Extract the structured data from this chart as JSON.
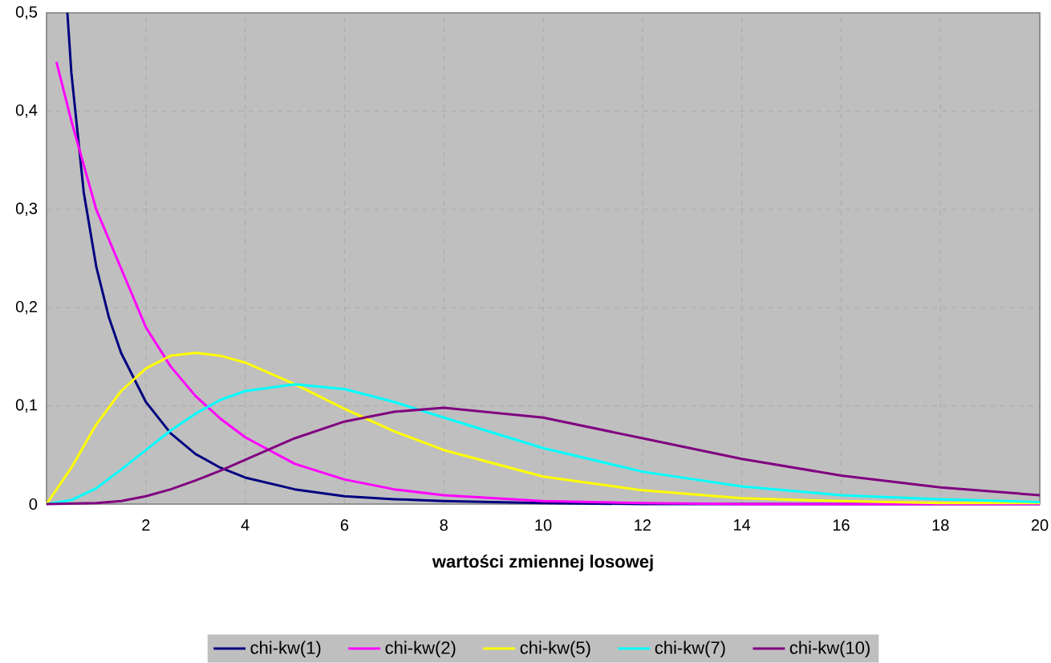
{
  "chart_data": {
    "type": "line",
    "xlabel": "wartości zmiennej losowej",
    "xlim": [
      0,
      20
    ],
    "ylim": [
      0,
      0.5
    ],
    "xticks": [
      {
        "value": 0,
        "label": null
      },
      2,
      4,
      6,
      8,
      10,
      12,
      14,
      16,
      18,
      20
    ],
    "yticks": [
      {
        "value": 0,
        "label": "0"
      },
      {
        "value": 0.1,
        "label": "0,1"
      },
      {
        "value": 0.2,
        "label": "0,2"
      },
      {
        "value": 0.3,
        "label": "0,3"
      },
      {
        "value": 0.4,
        "label": "0,4"
      },
      {
        "value": 0.5,
        "label": "0,5"
      }
    ],
    "grid": true,
    "legend": "bottom",
    "marker": "none",
    "line_style": "solid",
    "series": [
      {
        "name": "chi-kw(1)",
        "color": "#000080",
        "x": [
          0.42,
          0.5,
          0.75,
          1,
          1.25,
          1.5,
          2,
          2.5,
          3,
          3.5,
          4,
          5,
          6,
          7,
          8,
          10,
          12,
          14,
          16,
          18,
          20
        ],
        "values": [
          0.5,
          0.439,
          0.317,
          0.242,
          0.191,
          0.154,
          0.104,
          0.072,
          0.051,
          0.037,
          0.027,
          0.015,
          0.008,
          0.005,
          0.003,
          0.001,
          0,
          0,
          null,
          null,
          0
        ]
      },
      {
        "name": "chi-kw(2)",
        "color": "#ff00ff",
        "x": [
          0.2,
          0.5,
          1,
          1.5,
          2,
          2.5,
          3,
          3.5,
          4,
          5,
          6,
          7,
          8,
          10,
          12,
          14,
          16,
          18,
          20
        ],
        "values": [
          0.45,
          0.39,
          0.3,
          0.24,
          0.18,
          0.14,
          0.11,
          0.087,
          0.068,
          0.041,
          0.025,
          0.015,
          0.009,
          0.003,
          0.001,
          0,
          0,
          null,
          0
        ]
      },
      {
        "name": "chi-kw(5)",
        "color": "#ffff00",
        "x": [
          0,
          0.5,
          1,
          1.5,
          2,
          2.5,
          3,
          3.5,
          4,
          5,
          6,
          7,
          8,
          10,
          12,
          14,
          16,
          18,
          20
        ],
        "values": [
          0,
          0.037,
          0.081,
          0.115,
          0.138,
          0.151,
          0.154,
          0.151,
          0.144,
          0.122,
          0.097,
          0.074,
          0.055,
          0.028,
          0.014,
          0.006,
          0.003,
          0.001,
          0.001
        ]
      },
      {
        "name": "chi-kw(7)",
        "color": "#00ffff",
        "x": [
          0,
          0.5,
          1,
          1.5,
          2,
          2.5,
          3,
          3.5,
          4,
          5,
          6,
          7,
          8,
          10,
          12,
          14,
          16,
          18,
          20
        ],
        "values": [
          0,
          0.004,
          0.016,
          0.035,
          0.055,
          0.075,
          0.092,
          0.106,
          0.115,
          0.122,
          0.117,
          0.104,
          0.088,
          0.057,
          0.033,
          0.018,
          0.009,
          0.005,
          0.002
        ]
      },
      {
        "name": "chi-kw(10)",
        "color": "#800080",
        "x": [
          0,
          1,
          1.5,
          2,
          2.5,
          3,
          3.5,
          4,
          5,
          6,
          7,
          8,
          10,
          12,
          14,
          16,
          18,
          20
        ],
        "values": [
          0,
          0.001,
          0.003,
          0.008,
          0.015,
          0.024,
          0.034,
          0.045,
          0.067,
          0.084,
          0.094,
          0.098,
          0.088,
          0.067,
          0.046,
          0.029,
          0.017,
          0.009
        ]
      }
    ]
  }
}
